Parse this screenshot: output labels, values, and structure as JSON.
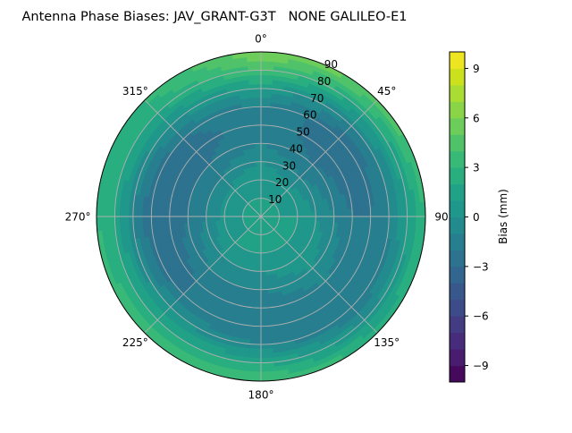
{
  "chart_data": {
    "type": "heatmap",
    "projection": "polar",
    "title": "Antenna Phase Biases: JAV_GRANT-G3T   NONE GALILEO-E1",
    "theta_direction": "clockwise",
    "theta_zero": "north",
    "theta_ticks": [
      "0°",
      "45°",
      "90°",
      "135°",
      "180°",
      "225°",
      "270°",
      "315°"
    ],
    "r_ticks": [
      "10",
      "20",
      "30",
      "40",
      "50",
      "60",
      "70",
      "80",
      "90"
    ],
    "r_range": [
      0,
      90
    ],
    "grid": true,
    "colorbar": {
      "label": "Bias (mm)",
      "range": [
        -10,
        10
      ],
      "levels": 20,
      "ticks": [
        "−9",
        "−6",
        "−3",
        "0",
        "3",
        "6",
        "9"
      ],
      "tick_values": [
        -9,
        -6,
        -3,
        0,
        3,
        6,
        9
      ],
      "colormap": "viridis"
    },
    "azimuth": [
      0,
      45,
      90,
      135,
      180,
      225,
      270,
      315
    ],
    "zenith": [
      0,
      10,
      20,
      30,
      40,
      50,
      60,
      70,
      80,
      90
    ],
    "values": [
      [
        1,
        1,
        1,
        1,
        1,
        1,
        1,
        1
      ],
      [
        1,
        1,
        1,
        1,
        1,
        1,
        1,
        1
      ],
      [
        1,
        0.5,
        1,
        1,
        1,
        1,
        0.5,
        0.5
      ],
      [
        0,
        -1,
        0,
        1,
        0,
        0,
        -1,
        -1
      ],
      [
        -1,
        -2,
        -1,
        0,
        -1,
        -1,
        -2,
        -2
      ],
      [
        -1,
        -3,
        -2,
        -1,
        -2,
        -2,
        -3,
        -3
      ],
      [
        -1,
        -3,
        -2,
        -2,
        -2,
        -2,
        -3,
        -2
      ],
      [
        1,
        -1,
        -1,
        -2,
        -1,
        0,
        -1,
        0
      ],
      [
        4,
        2,
        1,
        0,
        2,
        2,
        2,
        2
      ],
      [
        6,
        5,
        3,
        3,
        4,
        4,
        3,
        3
      ]
    ]
  }
}
